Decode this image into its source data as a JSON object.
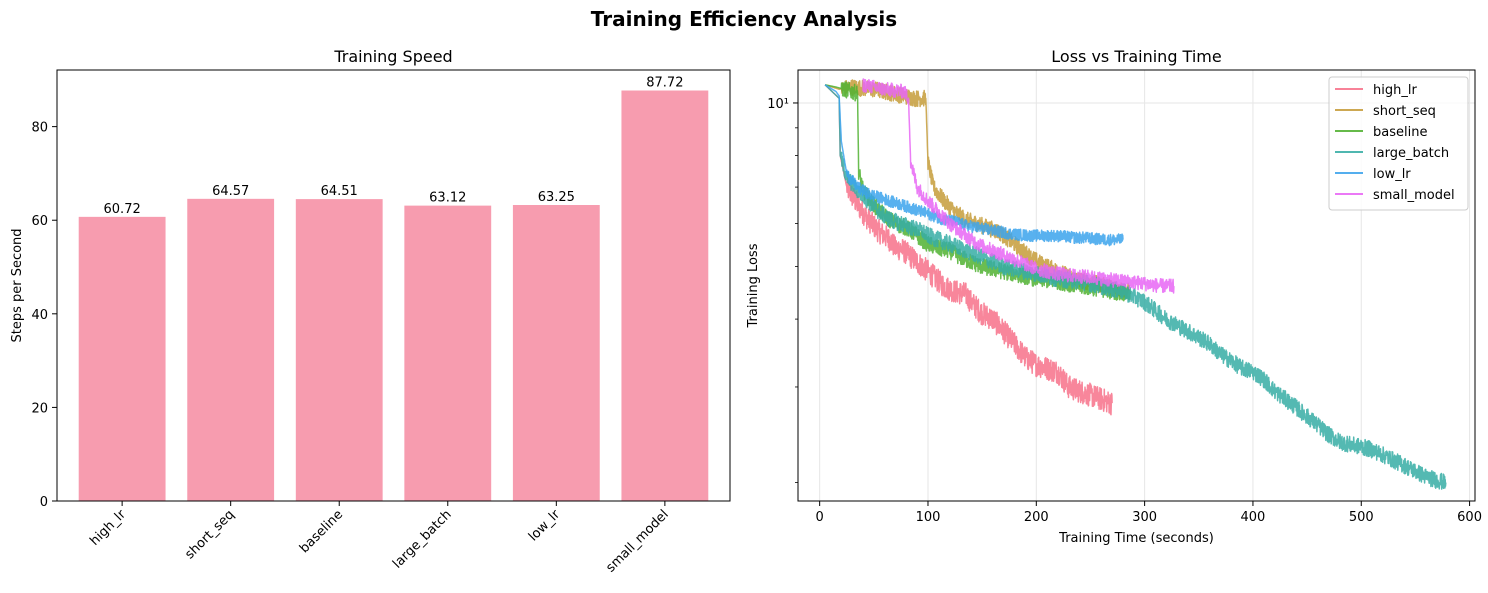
{
  "figure_title": "Training Efficiency Analysis",
  "colors": {
    "bar": "#f79caf",
    "grid": "#e6e6e6",
    "series": {
      "high_lr": "#f77189",
      "short_seq": "#c69c3a",
      "baseline": "#50b131",
      "large_batch": "#36ada4",
      "low_lr": "#3ba3ec",
      "small_model": "#e866f4"
    }
  },
  "chart_data": [
    {
      "type": "bar",
      "title": "Training Speed",
      "xlabel": "",
      "ylabel": "Steps per Second",
      "categories": [
        "high_lr",
        "short_seq",
        "baseline",
        "large_batch",
        "low_lr",
        "small_model"
      ],
      "values": [
        60.72,
        64.57,
        64.51,
        63.12,
        63.25,
        87.72
      ],
      "value_labels": [
        "60.72",
        "64.57",
        "64.51",
        "63.12",
        "63.25",
        "87.72"
      ],
      "ylim": [
        0,
        92.1
      ],
      "yticks": [
        0,
        20,
        40,
        60,
        80
      ],
      "grid": false,
      "legend": "none"
    },
    {
      "type": "line",
      "title": "Loss vs Training Time",
      "xlabel": "Training Time (seconds)",
      "ylabel": "Training Loss",
      "yscale": "log",
      "xlim": [
        -20,
        605
      ],
      "ylim": [
        1.85,
        11.5
      ],
      "xticks": [
        0,
        100,
        200,
        300,
        400,
        500,
        600
      ],
      "yticks": [
        {
          "value": 10,
          "label": "10¹"
        }
      ],
      "grid": true,
      "legend": "top-right",
      "series": [
        {
          "name": "high_lr",
          "segments": [
            [
              [
                5,
                10.8
              ],
              [
                18,
                10.2
              ],
              [
                19,
                8.0
              ],
              [
                25,
                7.0
              ],
              [
                35,
                6.5
              ],
              [
                45,
                6.1
              ],
              [
                55,
                5.8
              ],
              [
                65,
                5.6
              ],
              [
                70,
                5.4
              ],
              [
                75,
                5.4
              ],
              [
                85,
                5.2
              ],
              [
                95,
                5.0
              ],
              [
                105,
                4.8
              ],
              [
                115,
                4.6
              ],
              [
                125,
                4.5
              ],
              [
                135,
                4.45
              ],
              [
                140,
                4.3
              ],
              [
                150,
                4.1
              ],
              [
                160,
                4.0
              ],
              [
                170,
                3.8
              ],
              [
                180,
                3.6
              ],
              [
                190,
                3.4
              ],
              [
                200,
                3.3
              ],
              [
                210,
                3.25
              ],
              [
                220,
                3.2
              ],
              [
                230,
                3.0
              ],
              [
                240,
                2.95
              ],
              [
                250,
                2.9
              ],
              [
                260,
                2.85
              ],
              [
                270,
                2.8
              ]
            ]
          ],
          "noise": 0.05
        },
        {
          "name": "short_seq",
          "segments": [
            [
              [
                5,
                10.8
              ],
              [
                18,
                10.6
              ],
              [
                30,
                10.7
              ],
              [
                50,
                10.6
              ],
              [
                70,
                10.4
              ],
              [
                88,
                10.2
              ],
              [
                98,
                10.2
              ],
              [
                100,
                7.8
              ],
              [
                105,
                7.0
              ],
              [
                115,
                6.6
              ],
              [
                125,
                6.3
              ],
              [
                135,
                6.1
              ],
              [
                145,
                6.0
              ],
              [
                155,
                5.9
              ],
              [
                165,
                5.8
              ],
              [
                175,
                5.6
              ],
              [
                185,
                5.4
              ],
              [
                195,
                5.2
              ],
              [
                205,
                5.05
              ],
              [
                215,
                4.95
              ],
              [
                225,
                4.85
              ],
              [
                235,
                4.75
              ],
              [
                245,
                4.7
              ],
              [
                255,
                4.65
              ],
              [
                265,
                4.6
              ],
              [
                275,
                4.55
              ],
              [
                285,
                4.5
              ]
            ]
          ],
          "noise": 0.035
        },
        {
          "name": "baseline",
          "segments": [
            [
              [
                5,
                10.8
              ],
              [
                15,
                10.7
              ],
              [
                30,
                10.5
              ],
              [
                35,
                10.4
              ],
              [
                36,
                7.5
              ],
              [
                40,
                6.9
              ],
              [
                50,
                6.5
              ],
              [
                60,
                6.2
              ],
              [
                70,
                6.0
              ],
              [
                80,
                5.9
              ],
              [
                90,
                5.7
              ],
              [
                100,
                5.5
              ],
              [
                110,
                5.4
              ],
              [
                120,
                5.35
              ],
              [
                130,
                5.2
              ],
              [
                140,
                5.1
              ],
              [
                150,
                5.0
              ],
              [
                160,
                4.95
              ],
              [
                170,
                4.9
              ],
              [
                180,
                4.85
              ],
              [
                190,
                4.8
              ],
              [
                200,
                4.75
              ],
              [
                210,
                4.72
              ],
              [
                220,
                4.7
              ],
              [
                230,
                4.65
              ],
              [
                240,
                4.6
              ],
              [
                250,
                4.58
              ],
              [
                260,
                4.55
              ],
              [
                270,
                4.5
              ],
              [
                280,
                4.48
              ],
              [
                287,
                4.45
              ]
            ]
          ],
          "noise": 0.035
        },
        {
          "name": "large_batch",
          "segments": [
            [
              [
                5,
                10.8
              ],
              [
                18,
                10.2
              ],
              [
                19,
                8.0
              ],
              [
                25,
                7.3
              ],
              [
                35,
                6.9
              ],
              [
                45,
                6.6
              ],
              [
                55,
                6.3
              ],
              [
                65,
                6.1
              ],
              [
                75,
                6.0
              ],
              [
                85,
                5.9
              ],
              [
                95,
                5.8
              ],
              [
                100,
                5.7
              ],
              [
                110,
                5.6
              ],
              [
                120,
                5.5
              ],
              [
                130,
                5.4
              ],
              [
                140,
                5.3
              ],
              [
                150,
                5.2
              ],
              [
                160,
                5.1
              ],
              [
                170,
                5.0
              ],
              [
                180,
                4.95
              ],
              [
                190,
                4.9
              ],
              [
                200,
                4.85
              ],
              [
                210,
                4.8
              ],
              [
                220,
                4.75
              ],
              [
                230,
                4.72
              ],
              [
                240,
                4.7
              ],
              [
                250,
                4.65
              ],
              [
                260,
                4.6
              ],
              [
                270,
                4.55
              ],
              [
                280,
                4.5
              ],
              [
                290,
                4.4
              ],
              [
                300,
                4.3
              ],
              [
                310,
                4.15
              ],
              [
                320,
                4.0
              ],
              [
                330,
                3.9
              ],
              [
                340,
                3.8
              ],
              [
                350,
                3.7
              ],
              [
                360,
                3.6
              ],
              [
                370,
                3.45
              ],
              [
                380,
                3.35
              ],
              [
                390,
                3.25
              ],
              [
                400,
                3.2
              ],
              [
                410,
                3.1
              ],
              [
                420,
                2.95
              ],
              [
                430,
                2.85
              ],
              [
                440,
                2.75
              ],
              [
                450,
                2.65
              ],
              [
                460,
                2.55
              ],
              [
                470,
                2.45
              ],
              [
                480,
                2.38
              ],
              [
                490,
                2.35
              ],
              [
                500,
                2.33
              ],
              [
                510,
                2.3
              ],
              [
                520,
                2.25
              ],
              [
                530,
                2.2
              ],
              [
                540,
                2.15
              ],
              [
                550,
                2.1
              ],
              [
                560,
                2.05
              ],
              [
                570,
                2.02
              ],
              [
                578,
                2.0
              ]
            ]
          ],
          "noise": 0.035
        },
        {
          "name": "low_lr",
          "segments": [
            [
              [
                5,
                10.8
              ],
              [
                15,
                10.5
              ],
              [
                18,
                10.3
              ],
              [
                20,
                8.5
              ],
              [
                25,
                7.4
              ],
              [
                35,
                7.0
              ],
              [
                45,
                6.8
              ],
              [
                55,
                6.7
              ],
              [
                65,
                6.6
              ],
              [
                75,
                6.5
              ],
              [
                85,
                6.4
              ],
              [
                95,
                6.3
              ],
              [
                105,
                6.2
              ],
              [
                115,
                6.1
              ],
              [
                125,
                6.05
              ],
              [
                135,
                5.95
              ],
              [
                145,
                5.9
              ],
              [
                155,
                5.85
              ],
              [
                165,
                5.8
              ],
              [
                175,
                5.75
              ],
              [
                185,
                5.72
              ],
              [
                195,
                5.7
              ],
              [
                205,
                5.7
              ],
              [
                215,
                5.7
              ],
              [
                225,
                5.68
              ],
              [
                235,
                5.65
              ],
              [
                245,
                5.65
              ],
              [
                255,
                5.62
              ],
              [
                265,
                5.6
              ],
              [
                275,
                5.6
              ],
              [
                280,
                5.6
              ]
            ]
          ],
          "noise": 0.025
        },
        {
          "name": "small_model",
          "segments": [
            [
              [
                40,
                10.8
              ],
              [
                60,
                10.6
              ],
              [
                78,
                10.5
              ],
              [
                82,
                10.2
              ],
              [
                84,
                7.8
              ],
              [
                90,
                7.0
              ],
              [
                100,
                6.6
              ],
              [
                110,
                6.3
              ],
              [
                120,
                6.0
              ],
              [
                130,
                5.8
              ],
              [
                140,
                5.6
              ],
              [
                150,
                5.45
              ],
              [
                160,
                5.35
              ],
              [
                170,
                5.25
              ],
              [
                180,
                5.15
              ],
              [
                190,
                5.05
              ],
              [
                200,
                4.95
              ],
              [
                210,
                4.9
              ],
              [
                220,
                4.85
              ],
              [
                230,
                4.82
              ],
              [
                240,
                4.8
              ],
              [
                250,
                4.78
              ],
              [
                260,
                4.75
              ],
              [
                270,
                4.72
              ],
              [
                280,
                4.7
              ],
              [
                290,
                4.68
              ],
              [
                300,
                4.65
              ],
              [
                310,
                4.62
              ],
              [
                320,
                4.6
              ],
              [
                327,
                4.6
              ]
            ]
          ],
          "noise": 0.03
        }
      ]
    }
  ]
}
